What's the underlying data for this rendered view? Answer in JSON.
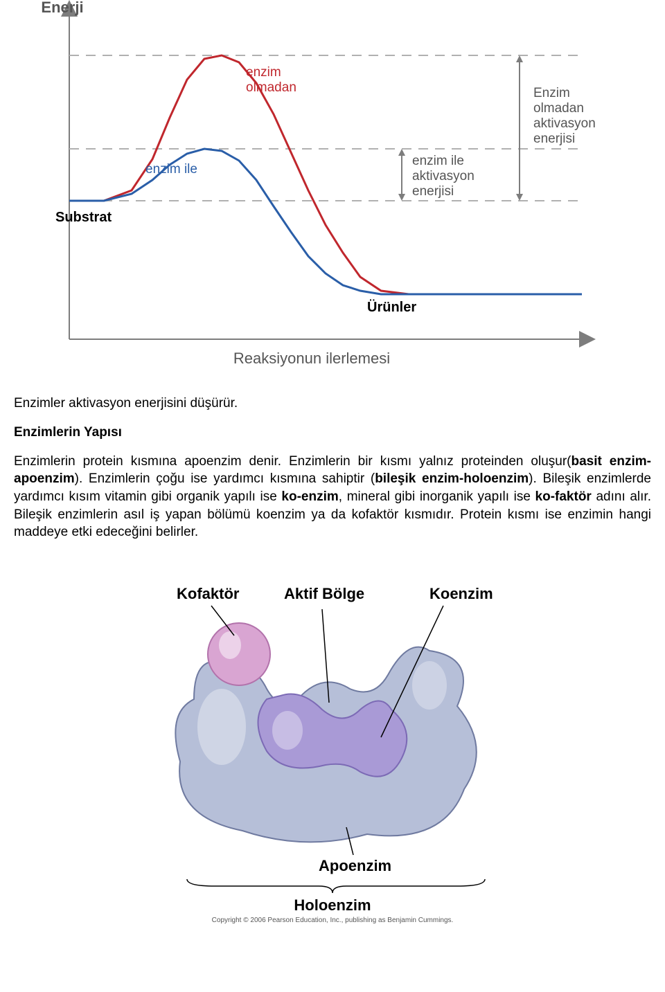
{
  "energy_chart": {
    "type": "line",
    "y_axis_label": "Enerji",
    "x_axis_label": "Reaksiyonun ilerlemesi",
    "axis_color": "#7d7d7d",
    "axis_label_color": "#555555",
    "axis_label_fontsize": 22,
    "grid_dash_color": "#b0b0b0",
    "arrow_color": "#7d7d7d",
    "series": {
      "without_enzyme": {
        "label": "enzim\nolmadan",
        "color": "#c0272d",
        "stroke_width": 3,
        "points": [
          [
            80,
            290
          ],
          [
            130,
            290
          ],
          [
            170,
            275
          ],
          [
            200,
            230
          ],
          [
            225,
            170
          ],
          [
            250,
            115
          ],
          [
            275,
            85
          ],
          [
            300,
            80
          ],
          [
            325,
            90
          ],
          [
            350,
            120
          ],
          [
            375,
            165
          ],
          [
            400,
            220
          ],
          [
            425,
            275
          ],
          [
            450,
            325
          ],
          [
            475,
            365
          ],
          [
            500,
            400
          ],
          [
            530,
            420
          ],
          [
            570,
            425
          ],
          [
            820,
            425
          ]
        ]
      },
      "with_enzyme": {
        "label": "enzim ile",
        "color": "#2a5ea8",
        "stroke_width": 3,
        "points": [
          [
            80,
            290
          ],
          [
            130,
            290
          ],
          [
            170,
            280
          ],
          [
            200,
            260
          ],
          [
            225,
            238
          ],
          [
            250,
            222
          ],
          [
            275,
            215
          ],
          [
            300,
            218
          ],
          [
            325,
            232
          ],
          [
            350,
            260
          ],
          [
            375,
            298
          ],
          [
            400,
            335
          ],
          [
            425,
            370
          ],
          [
            450,
            395
          ],
          [
            475,
            412
          ],
          [
            500,
            420
          ],
          [
            530,
            425
          ],
          [
            570,
            425
          ],
          [
            820,
            425
          ]
        ]
      }
    },
    "dash_lines_y": [
      80,
      215,
      290
    ],
    "substrate_label": "Substrat",
    "products_label": "Ürünler",
    "activation_with_label": "enzim ile\naktivasyon\nenerjisi",
    "activation_without_label": "Enzim\nolmadan\naktivasyon\nenerjisi",
    "label_fontsize": 19,
    "bold_label_fontsize": 20
  },
  "paragraph_1": "Enzimler aktivasyon enerjisini düşürür.",
  "heading_1": "Enzimlerin Yapısı",
  "paragraph_2_parts": [
    {
      "t": "Enzimlerin protein kısmına apoenzim denir. Enzimlerin bir kısmı yalnız proteinden oluşur(",
      "b": false
    },
    {
      "t": "basit enzim-apoenzim",
      "b": true
    },
    {
      "t": "). Enzimlerin çoğu ise yardımcı kısmına sahiptir (",
      "b": false
    },
    {
      "t": "bileşik enzim-holoenzim",
      "b": true
    },
    {
      "t": "). Bileşik enzimlerde yardımcı kısım vitamin gibi organik yapılı ise ",
      "b": false
    },
    {
      "t": "ko-enzim",
      "b": true
    },
    {
      "t": ", mineral gibi inorganik yapılı ise ",
      "b": false
    },
    {
      "t": "ko-faktör",
      "b": true
    },
    {
      "t": " adını alır. Bileşik enzimlerin asıl iş yapan bölümü koenzim ya da kofaktör kısmıdır. Protein kısmı ise enzimin hangi maddeye etki edeceğini belirler.",
      "b": false
    }
  ],
  "enzyme_diagram": {
    "type": "infographic",
    "labels": {
      "kofaktor": "Kofaktör",
      "aktif_bolge": "Aktif Bölge",
      "koenzim": "Koenzim",
      "apoenzim": "Apoenzim",
      "holoenzim": "Holoenzim"
    },
    "label_fontsize": 22,
    "label_color": "#000000",
    "colors": {
      "apoenzyme_fill": "#b6bfd8",
      "apoenzyme_stroke": "#6f7aa0",
      "coenzyme_fill": "#a99ad6",
      "coenzyme_stroke": "#7c6ab5",
      "cofactor_fill": "#d9a5d2",
      "cofactor_stroke": "#b272ab",
      "highlight": "#ffffff",
      "pointer_color": "#000000",
      "brace_color": "#000000"
    },
    "copyright": "Copyright © 2006 Pearson Education, Inc., publishing as Benjamin Cummings."
  }
}
